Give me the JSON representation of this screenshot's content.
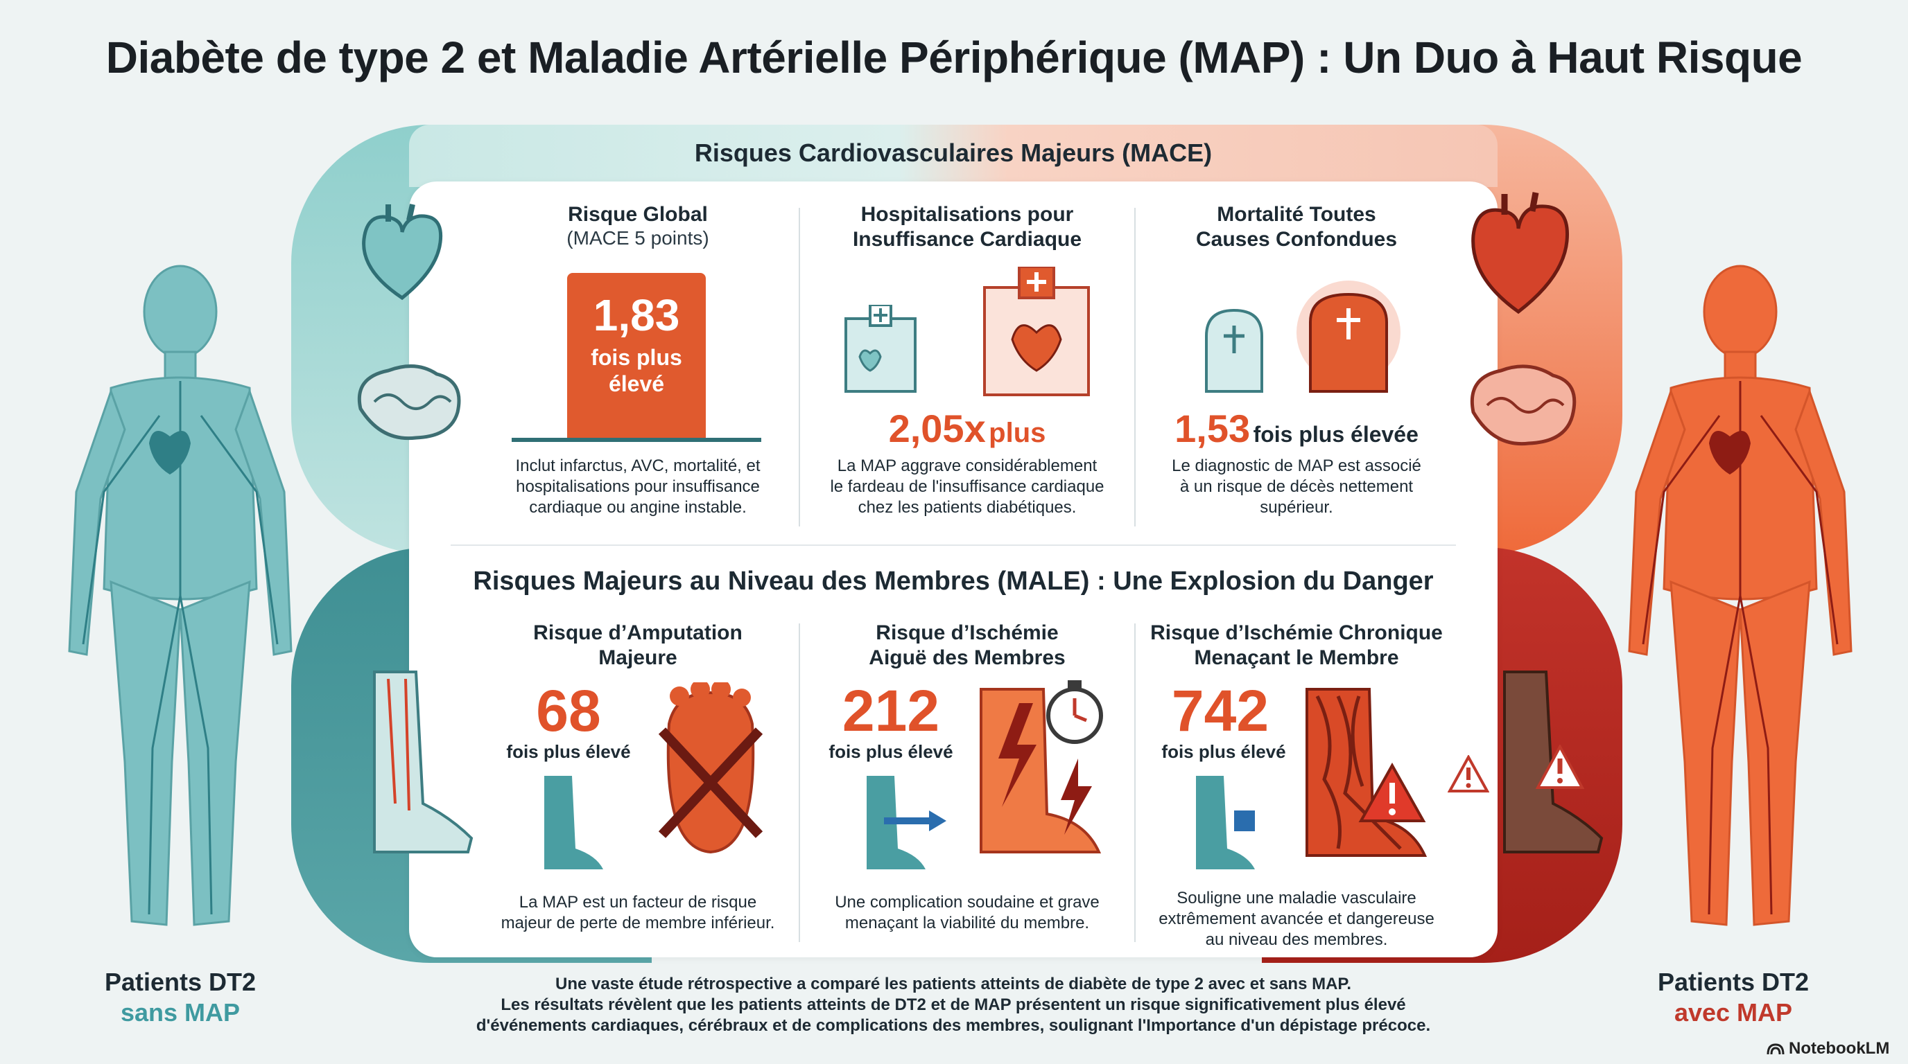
{
  "title": "Diabète de type 2 et Maladie Artérielle Périphérique (MAP) : Un Duo à Haut Risque",
  "colors": {
    "teal": "#4a9ea2",
    "orange": "#e8572c",
    "red": "#c0392b",
    "accent_num": "#e0522a"
  },
  "mace": {
    "title": "Risques Cardiovasculaires Majeurs (MACE)",
    "columns": [
      {
        "title": "Risque Global",
        "subtitle": "(MACE 5 points)",
        "value": "1,83",
        "unit_line1": "fois plus",
        "unit_line2": "élevé",
        "description": [
          "Inclut infarctus, AVC, mortalité, et",
          "hospitalisations pour insuffisance",
          "cardiaque ou angine instable."
        ]
      },
      {
        "title_line1": "Hospitalisations pour",
        "title_line2": "Insuffisance Cardiaque",
        "value": "2,05x",
        "unit": "plus",
        "description": [
          "La MAP aggrave considérablement",
          "le fardeau de l'insuffisance cardiaque",
          "chez les patients diabétiques."
        ]
      },
      {
        "title_line1": "Mortalité Toutes",
        "title_line2": "Causes Confondues",
        "value": "1,53",
        "unit": "fois plus élevée",
        "description": [
          "Le diagnostic de MAP est associé",
          "à un risque de décès nettement",
          "supérieur."
        ]
      }
    ]
  },
  "male": {
    "title": "Risques Majeurs au Niveau des Membres (MALE) : Une Explosion du Danger",
    "columns": [
      {
        "title_line1": "Risque d’Amputation",
        "title_line2": "Majeure",
        "value": "68",
        "unit": "fois plus élevé",
        "description": [
          "La MAP est un facteur de risque",
          "majeur de perte de membre inférieur."
        ]
      },
      {
        "title_line1": "Risque d’Ischémie",
        "title_line2": "Aiguë des Membres",
        "value": "212",
        "unit": "fois plus élevé",
        "description": [
          "Une complication soudaine et grave",
          "menaçant la viabilité du membre."
        ]
      },
      {
        "title_line1": "Risque d’Ischémie Chronique",
        "title_line2": "Menaçant le Membre",
        "value": "742",
        "unit": "fois plus élevé",
        "description": [
          "Souligne une maladie vasculaire",
          "extrêmement avancée et dangereuse",
          "au niveau des membres."
        ]
      }
    ]
  },
  "left_patient": {
    "line1": "Patients DT2",
    "line2": "sans MAP"
  },
  "right_patient": {
    "line1": "Patients DT2",
    "line2": "avec MAP"
  },
  "footer": [
    "Une vaste étude rétrospective a comparé les patients atteints de diabète de type 2 avec et sans MAP.",
    "Les résultats révèlent que les patients atteints de DT2 et de MAP présentent un risque significativement plus élevé",
    "d'événements cardiaques, cérébraux et de complications des membres, soulignant l'Importance d'un dépistage précoce."
  ],
  "brand": "NotebookLM"
}
